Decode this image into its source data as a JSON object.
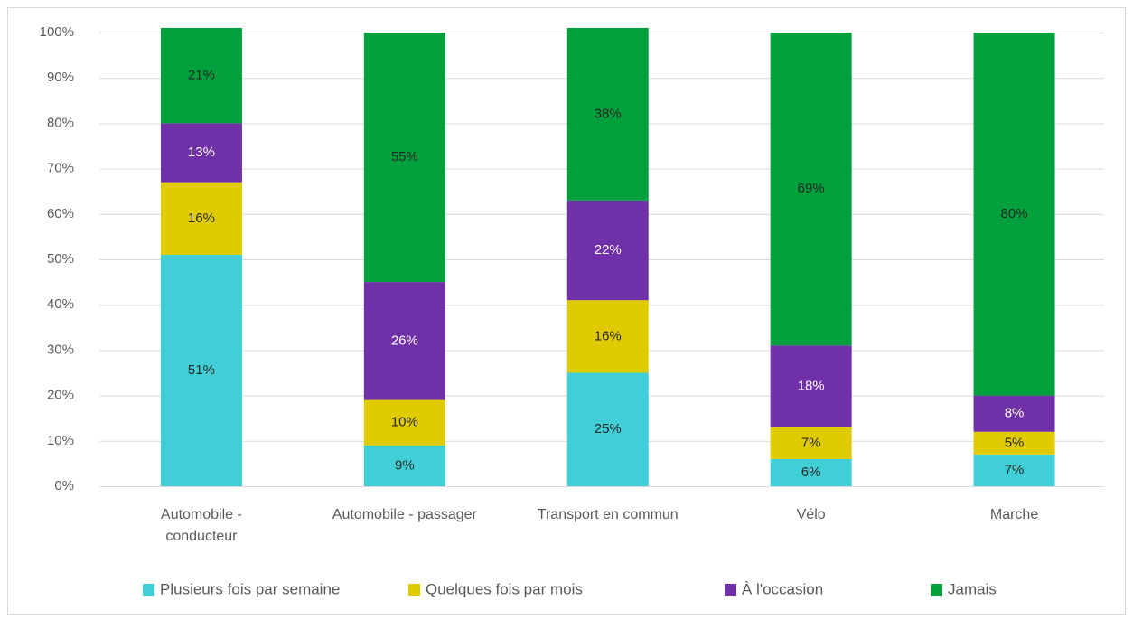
{
  "chart_data": {
    "type": "stacked_bar",
    "categories": [
      "Automobile - conducteur",
      "Automobile - passager",
      "Transport en commun",
      "Vélo",
      "Marche"
    ],
    "series": [
      {
        "name": "Plusieurs fois par semaine",
        "color": "#40cfd6",
        "label_color": "#262626",
        "values": [
          51,
          9,
          25,
          6,
          7
        ],
        "value_labels": [
          "51%",
          "9%",
          "25%",
          "6%",
          "7%"
        ]
      },
      {
        "name": "Quelques fois par mois",
        "color": "#e0cb00",
        "label_color": "#262626",
        "values": [
          16,
          10,
          16,
          7,
          5
        ],
        "value_labels": [
          "16%",
          "10%",
          "16%",
          "7%",
          "5%"
        ]
      },
      {
        "name": "À l'occasion",
        "color": "#7030a8",
        "label_color": "#ffffff",
        "values": [
          13,
          26,
          22,
          18,
          8
        ],
        "value_labels": [
          "13%",
          "26%",
          "22%",
          "18%",
          "8%"
        ]
      },
      {
        "name": "Jamais",
        "color": "#00a03c",
        "label_color": "#262626",
        "values": [
          21,
          55,
          38,
          69,
          80
        ],
        "value_labels": [
          "21%",
          "55%",
          "38%",
          "69%",
          "80%"
        ]
      }
    ],
    "ylim": [
      0,
      100
    ],
    "yticks": [
      {
        "value": 0,
        "label": "0%"
      },
      {
        "value": 10,
        "label": "10%"
      },
      {
        "value": 20,
        "label": "20%"
      },
      {
        "value": 30,
        "label": "30%"
      },
      {
        "value": 40,
        "label": "40%"
      },
      {
        "value": 50,
        "label": "50%"
      },
      {
        "value": 60,
        "label": "60%"
      },
      {
        "value": 70,
        "label": "70%"
      },
      {
        "value": 80,
        "label": "80%"
      },
      {
        "value": 90,
        "label": "90%"
      },
      {
        "value": 100,
        "label": "100%"
      }
    ],
    "grid": true,
    "legend": "bottom"
  }
}
